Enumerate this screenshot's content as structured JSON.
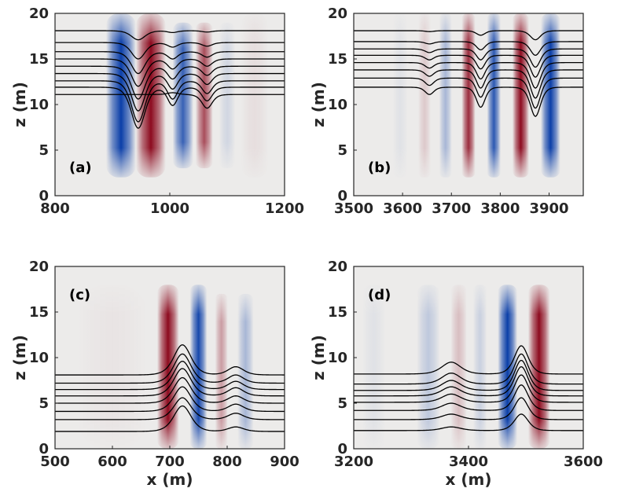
{
  "chart_data": [
    {
      "type": "heatmap",
      "panel_label": "(a)",
      "xlabel": "",
      "ylabel": "z (m)",
      "xlim": [
        800,
        1200
      ],
      "ylim": [
        0,
        20
      ],
      "xticks": [
        800,
        1000,
        1200
      ],
      "yticks": [
        0,
        5,
        10,
        15,
        20
      ],
      "field_bands": [
        {
          "x": 915,
          "width": 26,
          "amplitude": -1.0,
          "z_low": 2,
          "z_high": 20
        },
        {
          "x": 967,
          "width": 26,
          "amplitude": 1.0,
          "z_low": 2,
          "z_high": 20
        },
        {
          "x": 1023,
          "width": 18,
          "amplitude": -0.8,
          "z_low": 3,
          "z_high": 19
        },
        {
          "x": 1060,
          "width": 15,
          "amplitude": 0.7,
          "z_low": 3,
          "z_high": 19
        },
        {
          "x": 1100,
          "width": 14,
          "amplitude": -0.12,
          "z_low": 3,
          "z_high": 19
        },
        {
          "x": 1148,
          "width": 24,
          "amplitude": 0.06,
          "z_low": 2,
          "z_high": 20
        }
      ],
      "isopycnals": [
        {
          "z": 18.1,
          "waves": [
            {
              "x": 945,
              "a": -1.0,
              "w": 16
            },
            {
              "x": 1005,
              "a": -0.2,
              "w": 12
            },
            {
              "x": 1065,
              "a": -0.15,
              "w": 12
            }
          ]
        },
        {
          "z": 16.8,
          "waves": [
            {
              "x": 945,
              "a": -1.8,
              "w": 16
            },
            {
              "x": 1005,
              "a": -0.5,
              "w": 12
            },
            {
              "x": 1065,
              "a": -0.4,
              "w": 12
            }
          ]
        },
        {
          "z": 15.8,
          "waves": [
            {
              "x": 945,
              "a": -2.4,
              "w": 16
            },
            {
              "x": 1005,
              "a": -0.8,
              "w": 12
            },
            {
              "x": 1065,
              "a": -0.6,
              "w": 12
            }
          ]
        },
        {
          "z": 15.0,
          "waves": [
            {
              "x": 945,
              "a": -3.0,
              "w": 16
            },
            {
              "x": 1005,
              "a": -1.1,
              "w": 12
            },
            {
              "x": 1065,
              "a": -0.8,
              "w": 12
            }
          ]
        },
        {
          "z": 14.2,
          "waves": [
            {
              "x": 945,
              "a": -3.6,
              "w": 16
            },
            {
              "x": 1005,
              "a": -1.4,
              "w": 12
            },
            {
              "x": 1065,
              "a": -1.0,
              "w": 12
            }
          ]
        },
        {
          "z": 13.4,
          "waves": [
            {
              "x": 945,
              "a": -4.1,
              "w": 16
            },
            {
              "x": 1005,
              "a": -1.7,
              "w": 12
            },
            {
              "x": 1065,
              "a": -1.2,
              "w": 12
            }
          ]
        },
        {
          "z": 12.6,
          "waves": [
            {
              "x": 945,
              "a": -4.5,
              "w": 16
            },
            {
              "x": 1005,
              "a": -2.0,
              "w": 12
            },
            {
              "x": 1065,
              "a": -1.4,
              "w": 12
            }
          ]
        },
        {
          "z": 11.9,
          "waves": [
            {
              "x": 945,
              "a": -4.5,
              "w": 16
            },
            {
              "x": 1005,
              "a": -2.0,
              "w": 12
            },
            {
              "x": 1065,
              "a": -1.5,
              "w": 12
            }
          ]
        },
        {
          "z": 11.1,
          "waves": [
            {
              "x": 1005,
              "a": 0.2,
              "w": 12
            },
            {
              "x": 1065,
              "a": -1.5,
              "w": 12
            }
          ]
        }
      ]
    },
    {
      "type": "heatmap",
      "panel_label": "(b)",
      "xlabel": "",
      "ylabel": "z (m)",
      "xlim": [
        3500,
        3970
      ],
      "ylim": [
        0,
        20
      ],
      "xticks": [
        3500,
        3600,
        3700,
        3800,
        3900
      ],
      "yticks": [
        0,
        5,
        10,
        15,
        20
      ],
      "field_bands": [
        {
          "x": 3595,
          "width": 15,
          "amplitude": -0.05,
          "z_low": 2,
          "z_high": 20
        },
        {
          "x": 3645,
          "width": 13,
          "amplitude": 0.15,
          "z_low": 2,
          "z_high": 20
        },
        {
          "x": 3688,
          "width": 13,
          "amplitude": -0.3,
          "z_low": 2,
          "z_high": 20
        },
        {
          "x": 3735,
          "width": 14,
          "amplitude": 0.85,
          "z_low": 2,
          "z_high": 20
        },
        {
          "x": 3787,
          "width": 14,
          "amplitude": -0.85,
          "z_low": 2,
          "z_high": 20
        },
        {
          "x": 3842,
          "width": 17,
          "amplitude": 1.0,
          "z_low": 2,
          "z_high": 20
        },
        {
          "x": 3903,
          "width": 20,
          "amplitude": -1.0,
          "z_low": 2,
          "z_high": 20
        }
      ],
      "isopycnals": [
        {
          "z": 18.1,
          "waves": [
            {
              "x": 3655,
              "a": -0.1,
              "w": 12
            },
            {
              "x": 3760,
              "a": -0.5,
              "w": 12
            },
            {
              "x": 3872,
              "a": -1.0,
              "w": 14
            }
          ]
        },
        {
          "z": 16.9,
          "waves": [
            {
              "x": 3655,
              "a": -0.25,
              "w": 12
            },
            {
              "x": 3760,
              "a": -0.9,
              "w": 12
            },
            {
              "x": 3872,
              "a": -1.5,
              "w": 14
            }
          ]
        },
        {
          "z": 16.1,
          "waves": [
            {
              "x": 3655,
              "a": -0.4,
              "w": 12
            },
            {
              "x": 3760,
              "a": -1.2,
              "w": 12
            },
            {
              "x": 3872,
              "a": -2.0,
              "w": 14
            }
          ]
        },
        {
          "z": 15.4,
          "waves": [
            {
              "x": 3655,
              "a": -0.5,
              "w": 12
            },
            {
              "x": 3760,
              "a": -1.5,
              "w": 12
            },
            {
              "x": 3872,
              "a": -2.4,
              "w": 14
            }
          ]
        },
        {
          "z": 14.6,
          "waves": [
            {
              "x": 3655,
              "a": -0.6,
              "w": 12
            },
            {
              "x": 3760,
              "a": -1.8,
              "w": 12
            },
            {
              "x": 3872,
              "a": -2.8,
              "w": 14
            }
          ]
        },
        {
          "z": 13.8,
          "waves": [
            {
              "x": 3655,
              "a": -0.7,
              "w": 12
            },
            {
              "x": 3760,
              "a": -2.0,
              "w": 12
            },
            {
              "x": 3872,
              "a": -3.1,
              "w": 14
            }
          ]
        },
        {
          "z": 12.9,
          "waves": [
            {
              "x": 3655,
              "a": -0.8,
              "w": 12
            },
            {
              "x": 3760,
              "a": -2.1,
              "w": 12
            },
            {
              "x": 3872,
              "a": -3.3,
              "w": 14
            }
          ]
        },
        {
          "z": 11.9,
          "waves": [
            {
              "x": 3655,
              "a": -0.8,
              "w": 12
            },
            {
              "x": 3760,
              "a": -2.2,
              "w": 12
            },
            {
              "x": 3872,
              "a": -3.2,
              "w": 14
            }
          ]
        }
      ]
    },
    {
      "type": "heatmap",
      "panel_label": "(c)",
      "xlabel": "x (m)",
      "ylabel": "z (m)",
      "xlim": [
        500,
        900
      ],
      "ylim": [
        0,
        20
      ],
      "xticks": [
        500,
        600,
        700,
        800,
        900
      ],
      "yticks": [
        0,
        5,
        10,
        15,
        20
      ],
      "field_bands": [
        {
          "x": 697,
          "width": 19,
          "amplitude": 1.0,
          "z_low": 0,
          "z_high": 18
        },
        {
          "x": 750,
          "width": 15,
          "amplitude": -0.95,
          "z_low": 0,
          "z_high": 18
        },
        {
          "x": 790,
          "width": 11,
          "amplitude": 0.35,
          "z_low": 0,
          "z_high": 17
        },
        {
          "x": 832,
          "width": 14,
          "amplitude": -0.3,
          "z_low": 0,
          "z_high": 17
        },
        {
          "x": 600,
          "width": 60,
          "amplitude": 0.03,
          "z_low": 0,
          "z_high": 18
        }
      ],
      "isopycnals": [
        {
          "z": 8.1,
          "waves": [
            {
              "x": 722,
              "a": 3.3,
              "w": 20
            },
            {
              "x": 815,
              "a": 0.9,
              "w": 18
            }
          ]
        },
        {
          "z": 7.2,
          "waves": [
            {
              "x": 722,
              "a": 3.2,
              "w": 20
            },
            {
              "x": 815,
              "a": 0.9,
              "w": 18
            }
          ]
        },
        {
          "z": 6.5,
          "waves": [
            {
              "x": 722,
              "a": 3.1,
              "w": 20
            },
            {
              "x": 815,
              "a": 0.9,
              "w": 18
            }
          ]
        },
        {
          "z": 5.8,
          "waves": [
            {
              "x": 722,
              "a": 3.0,
              "w": 20
            },
            {
              "x": 815,
              "a": 0.9,
              "w": 18
            }
          ]
        },
        {
          "z": 5.0,
          "waves": [
            {
              "x": 722,
              "a": 2.8,
              "w": 20
            },
            {
              "x": 815,
              "a": 0.8,
              "w": 18
            }
          ]
        },
        {
          "z": 4.1,
          "waves": [
            {
              "x": 722,
              "a": 2.7,
              "w": 20
            },
            {
              "x": 815,
              "a": 0.8,
              "w": 18
            }
          ]
        },
        {
          "z": 3.2,
          "waves": [
            {
              "x": 722,
              "a": 2.4,
              "w": 20
            },
            {
              "x": 815,
              "a": 0.7,
              "w": 18
            }
          ]
        },
        {
          "z": 1.9,
          "waves": [
            {
              "x": 722,
              "a": 2.8,
              "w": 20
            },
            {
              "x": 815,
              "a": 0.5,
              "w": 18
            }
          ]
        }
      ]
    },
    {
      "type": "heatmap",
      "panel_label": "(d)",
      "xlabel": "x (m)",
      "ylabel": "z (m)",
      "xlim": [
        3200,
        3600
      ],
      "ylim": [
        0,
        20
      ],
      "xticks": [
        3200,
        3400,
        3600
      ],
      "yticks": [
        0,
        5,
        10,
        15,
        20
      ],
      "field_bands": [
        {
          "x": 3235,
          "width": 20,
          "amplitude": -0.05,
          "z_low": 0,
          "z_high": 18
        },
        {
          "x": 3330,
          "width": 20,
          "amplitude": -0.2,
          "z_low": 0,
          "z_high": 18
        },
        {
          "x": 3383,
          "width": 14,
          "amplitude": 0.2,
          "z_low": 0,
          "z_high": 18
        },
        {
          "x": 3420,
          "width": 12,
          "amplitude": -0.15,
          "z_low": 0,
          "z_high": 18
        },
        {
          "x": 3468,
          "width": 17,
          "amplitude": -1.0,
          "z_low": 0,
          "z_high": 18
        },
        {
          "x": 3523,
          "width": 19,
          "amplitude": 1.0,
          "z_low": 0,
          "z_high": 18
        }
      ],
      "isopycnals": [
        {
          "z": 8.2,
          "waves": [
            {
              "x": 3370,
              "a": 1.3,
              "w": 22
            },
            {
              "x": 3492,
              "a": 3.1,
              "w": 16
            }
          ]
        },
        {
          "z": 7.1,
          "waves": [
            {
              "x": 3370,
              "a": 1.2,
              "w": 22
            },
            {
              "x": 3492,
              "a": 3.3,
              "w": 16
            }
          ]
        },
        {
          "z": 6.4,
          "waves": [
            {
              "x": 3370,
              "a": 1.1,
              "w": 22
            },
            {
              "x": 3492,
              "a": 3.3,
              "w": 16
            }
          ]
        },
        {
          "z": 5.8,
          "waves": [
            {
              "x": 3370,
              "a": 1.0,
              "w": 22
            },
            {
              "x": 3492,
              "a": 3.2,
              "w": 16
            }
          ]
        },
        {
          "z": 5.1,
          "waves": [
            {
              "x": 3370,
              "a": 0.9,
              "w": 22
            },
            {
              "x": 3492,
              "a": 3.0,
              "w": 16
            }
          ]
        },
        {
          "z": 4.2,
          "waves": [
            {
              "x": 3370,
              "a": 0.8,
              "w": 22
            },
            {
              "x": 3492,
              "a": 2.8,
              "w": 16
            }
          ]
        },
        {
          "z": 3.2,
          "waves": [
            {
              "x": 3370,
              "a": 0.6,
              "w": 22
            },
            {
              "x": 3492,
              "a": 2.4,
              "w": 16
            }
          ]
        },
        {
          "z": 2.0,
          "waves": [
            {
              "x": 3370,
              "a": 0.4,
              "w": 22
            },
            {
              "x": 3492,
              "a": 1.8,
              "w": 16
            }
          ]
        }
      ]
    }
  ],
  "colors": {
    "negative": "#0a3ea8",
    "positive": "#8c0a1e",
    "neutral": "#ecebea",
    "isopycnal": "#000000",
    "axis_text": "#262626"
  }
}
